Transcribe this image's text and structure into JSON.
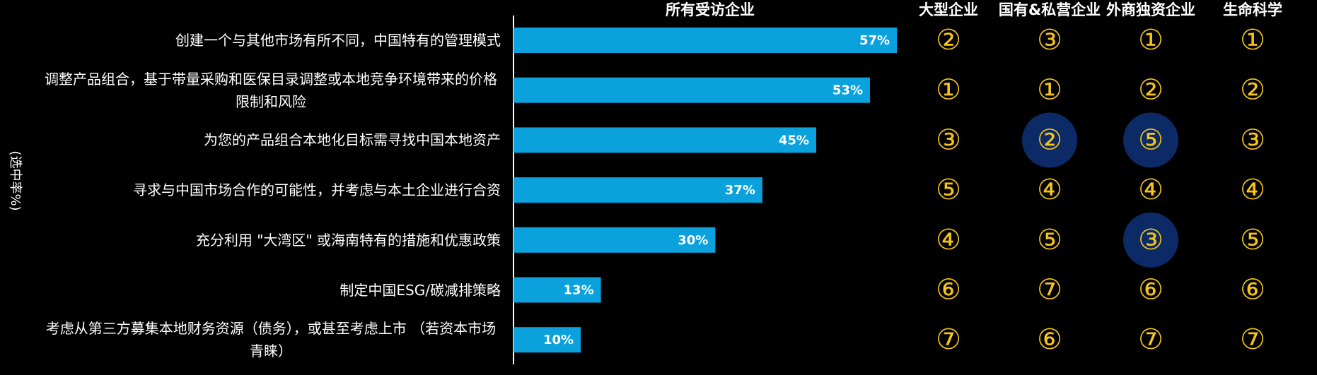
{
  "chart_data": {
    "type": "bar",
    "orientation": "horizontal",
    "title": "所有受访企业",
    "ylabel": "(选中率%)",
    "categories": [
      "创建一个与其他市场有所不同，中国特有的管理模式",
      "调整产品组合，基于带量采购和医保目录调整或本地竞争环境带来的价格限制和风险",
      "为您的产品组合本地化目标需寻找中国本地资产",
      "寻求与中国市场合作的可能性，并考虑与本土企业进行合资",
      "充分利用 \"大湾区\" 或海南特有的措施和优惠政策",
      "制定中国ESG/碳减排策略",
      "考虑从第三方募集本地财务资源（债务），或甚至考虑上市 （若资本市场青睐）"
    ],
    "values": [
      57,
      53,
      45,
      37,
      30,
      13,
      10
    ],
    "value_labels": [
      "57%",
      "53%",
      "45%",
      "37%",
      "30%",
      "13%",
      "10%"
    ],
    "color": "#0aa1dd",
    "xlim": [
      0,
      100
    ]
  },
  "rank_table": {
    "columns": [
      "大型企业",
      "国有&私营企业",
      "外商独资企业",
      "生命科学"
    ],
    "rows": [
      [
        "②",
        "③",
        "①",
        "①"
      ],
      [
        "①",
        "①",
        "②",
        "②"
      ],
      [
        "③",
        "②",
        "⑤",
        "③"
      ],
      [
        "⑤",
        "④",
        "④",
        "④"
      ],
      [
        "④",
        "⑤",
        "③",
        "⑤"
      ],
      [
        "⑥",
        "⑦",
        "⑥",
        "⑥"
      ],
      [
        "⑦",
        "⑥",
        "⑦",
        "⑦"
      ]
    ],
    "highlighted": [
      [
        2,
        1
      ],
      [
        2,
        2
      ],
      [
        4,
        2
      ]
    ],
    "highlight_color": "#0c2a66",
    "rank_color": "#f5c518"
  }
}
